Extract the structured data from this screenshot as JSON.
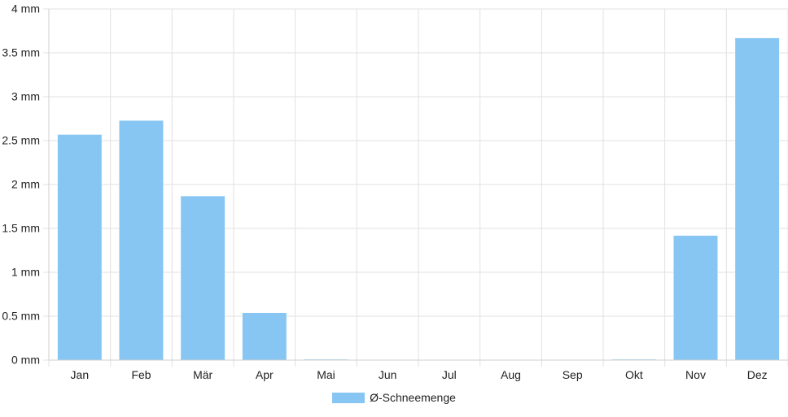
{
  "chart_data": {
    "type": "bar",
    "categories": [
      "Jan",
      "Feb",
      "Mär",
      "Apr",
      "Mai",
      "Jun",
      "Jul",
      "Aug",
      "Sep",
      "Okt",
      "Nov",
      "Dez"
    ],
    "series": [
      {
        "name": "Ø-Schneemenge",
        "values": [
          2.57,
          2.73,
          1.87,
          0.54,
          0.01,
          0,
          0,
          0,
          0,
          0.01,
          1.42,
          3.67
        ],
        "color": "#87c6f2"
      }
    ],
    "ylim": [
      0,
      4
    ],
    "yticks": [
      "0 mm",
      "0.5 mm",
      "1 mm",
      "1.5 mm",
      "2 mm",
      "2.5 mm",
      "3 mm",
      "3.5 mm",
      "4 mm"
    ],
    "ytick_values": [
      0,
      0.5,
      1,
      1.5,
      2,
      2.5,
      3,
      3.5,
      4
    ],
    "grid": true,
    "legend_position": "bottom"
  }
}
